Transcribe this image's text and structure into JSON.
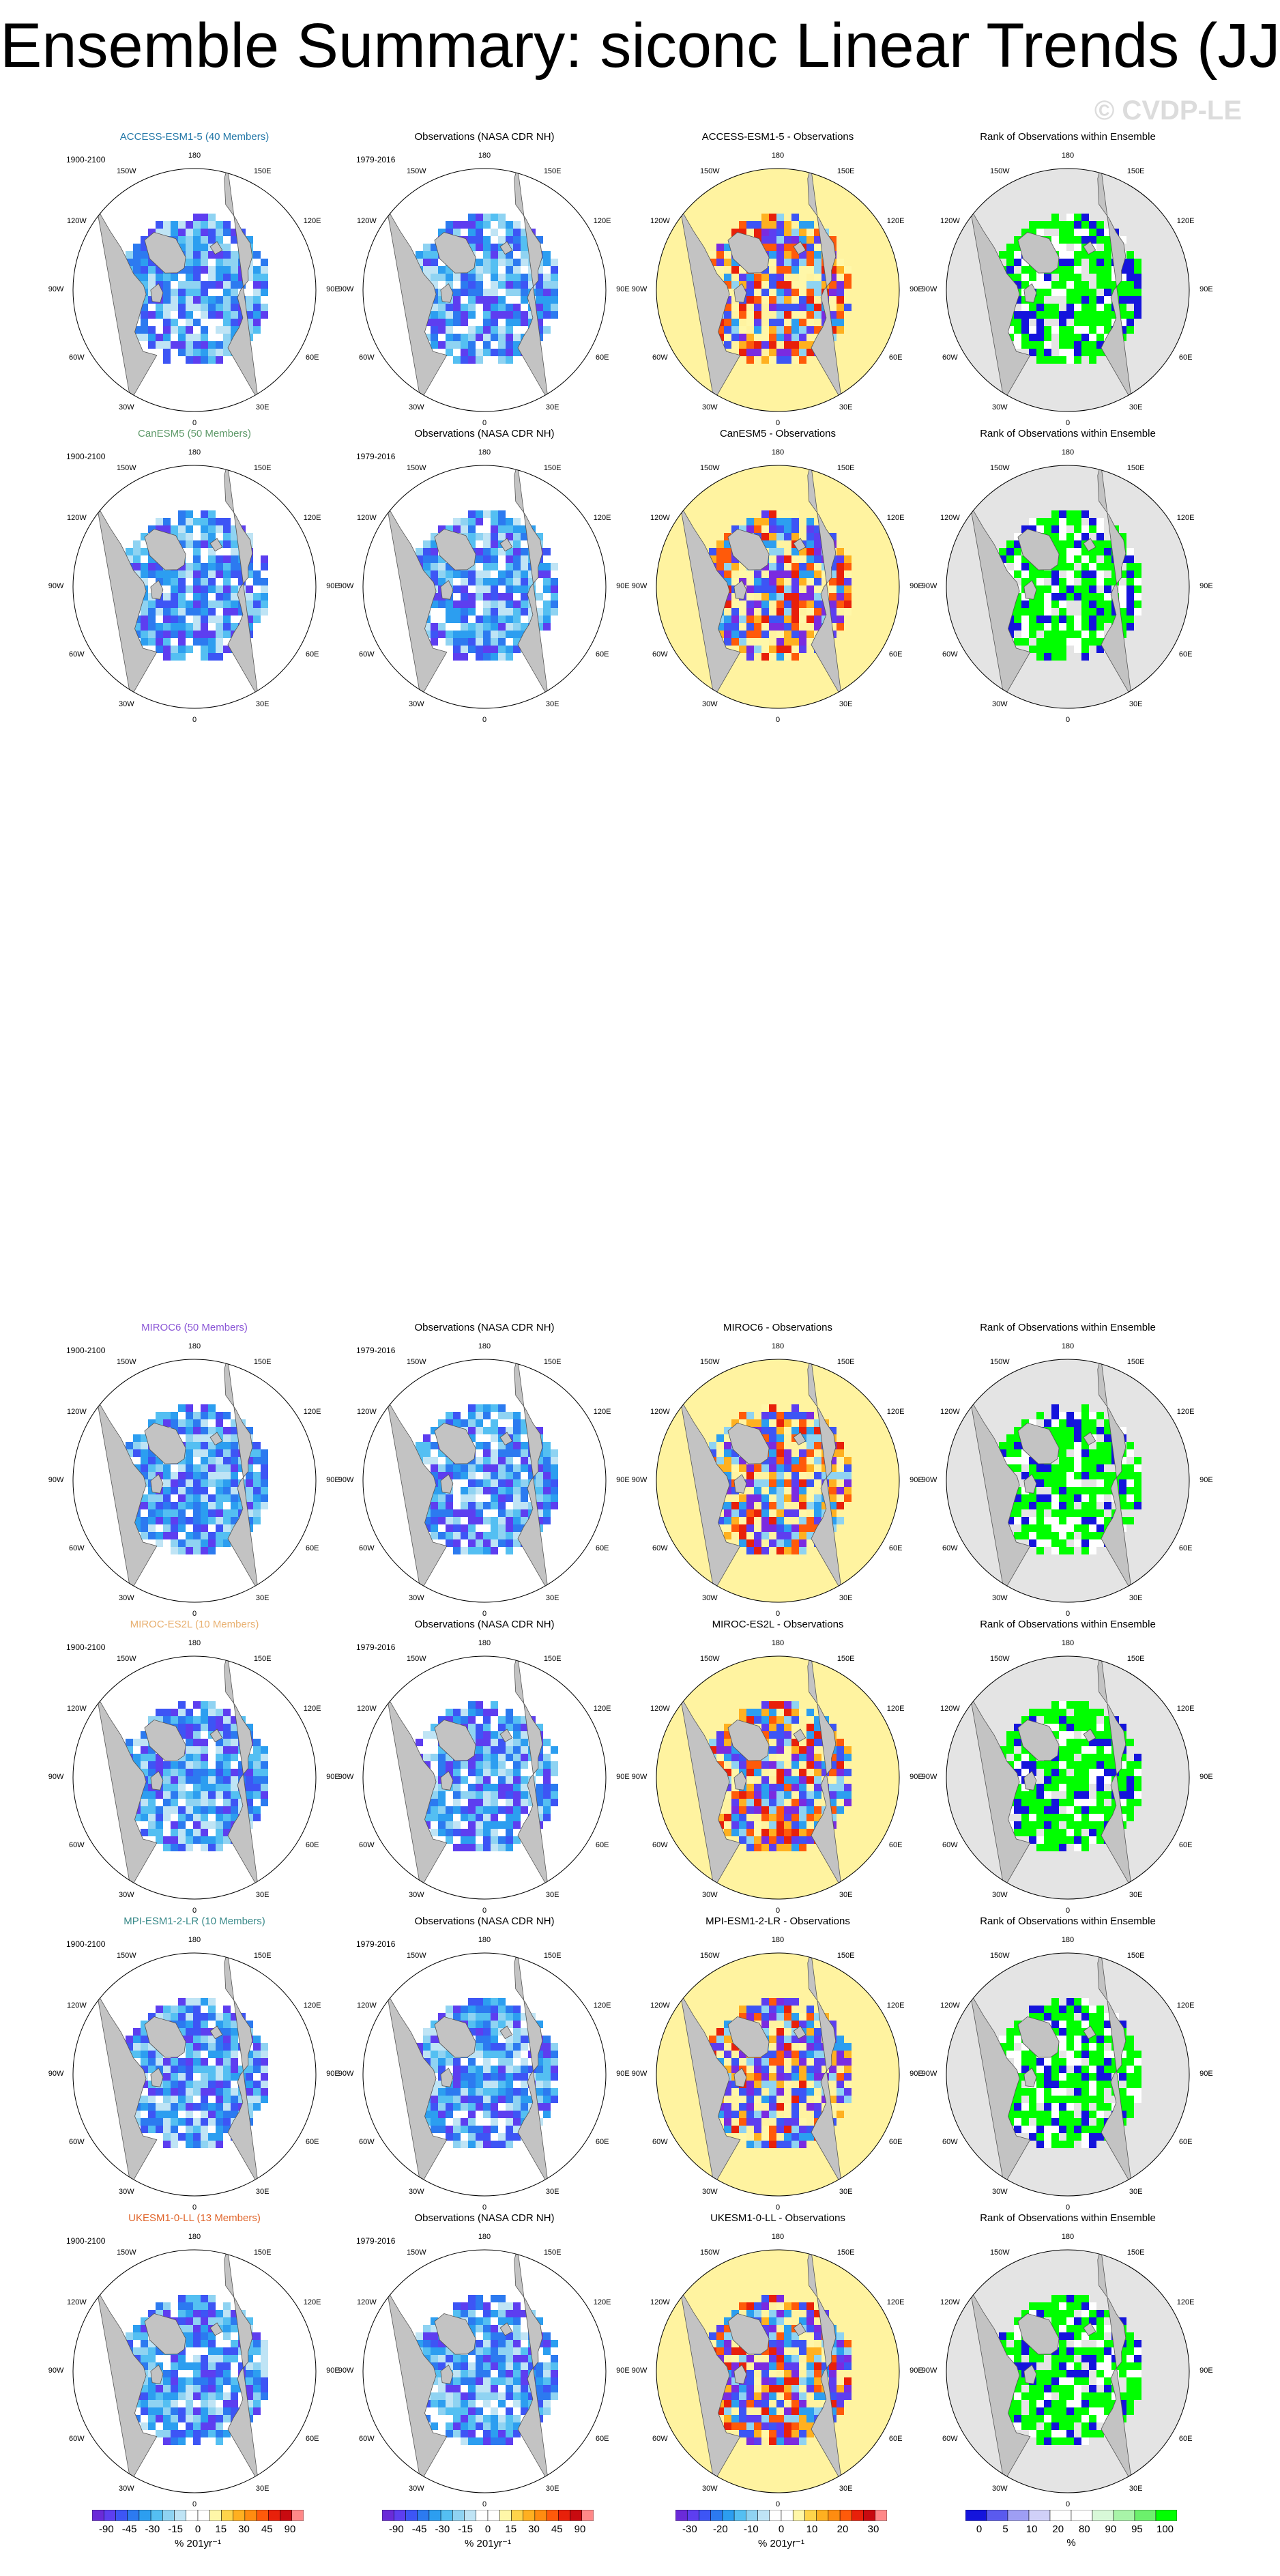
{
  "title": "Ensemble Summary: siconc Linear Trends (JJA)",
  "watermark": "© CVDP-LE",
  "model_period": "1900-2100",
  "obs_period": "1979-2016",
  "obs_title": "Observations (NASA CDR NH)",
  "rank_title": "Rank of Observations within Ensemble",
  "diff_suffix": " - Observations",
  "lon_labels": {
    "top": "180",
    "ul": "150W",
    "ur": "150E",
    "l2": "120W",
    "r2": "120E",
    "left": "90W",
    "right": "90E",
    "ll": "60W",
    "lr": "60E",
    "bl": "30W",
    "br": "30E",
    "bottom": "0"
  },
  "colors": {
    "land": "#c3c3c3",
    "ocean": "#ffffff",
    "rank_ocean": "#e4e4e4",
    "rank_green": "#00ff00"
  },
  "chart_data": {
    "type": "heatmap",
    "rows": [
      {
        "model": "ACCESS-ESM1-5 (40 Members)",
        "diff": "ACCESS-ESM1-5",
        "color": "#2478a8"
      },
      {
        "model": "CanESM5 (50 Members)",
        "diff": "CanESM5",
        "color": "#5f9a6a"
      },
      {
        "model": "MIROC6 (50 Members)",
        "diff": "MIROC6",
        "color": "#8a55d6"
      },
      {
        "model": "MIROC-ES2L (10 Members)",
        "diff": "MIROC-ES2L",
        "color": "#e8b070"
      },
      {
        "model": "MPI-ESM1-2-LR (10 Members)",
        "diff": "MPI-ESM1-2-LR",
        "color": "#3a8a8a"
      },
      {
        "model": "UKESM1-0-LL (13 Members)",
        "diff": "UKESM1-0-LL",
        "color": "#e0642a"
      }
    ],
    "colorbars": [
      {
        "labels": [
          "-90",
          "-45",
          "-30",
          "-15",
          "0",
          "15",
          "30",
          "45",
          "90"
        ],
        "unit": "% 201yr⁻¹",
        "colors": [
          "#6a2ad8",
          "#5d3ef0",
          "#3d55f5",
          "#2c7af0",
          "#2c9ef0",
          "#54bff2",
          "#8fd3f2",
          "#bfe4f5",
          "#ffffff",
          "#ffffff",
          "#fff7a8",
          "#ffd44a",
          "#ffb020",
          "#ff8c10",
          "#ff5a0a",
          "#e8200a",
          "#c80a10",
          "#ff8888"
        ]
      },
      {
        "labels": [
          "-90",
          "-45",
          "-30",
          "-15",
          "0",
          "15",
          "30",
          "45",
          "90"
        ],
        "unit": "% 201yr⁻¹",
        "colors": [
          "#6a2ad8",
          "#5d3ef0",
          "#3d55f5",
          "#2c7af0",
          "#2c9ef0",
          "#54bff2",
          "#8fd3f2",
          "#bfe4f5",
          "#ffffff",
          "#ffffff",
          "#fff7a8",
          "#ffd44a",
          "#ffb020",
          "#ff8c10",
          "#ff5a0a",
          "#e8200a",
          "#c80a10",
          "#ff8888"
        ]
      },
      {
        "labels": [
          "-30",
          "-20",
          "-10",
          "0",
          "10",
          "20",
          "30"
        ],
        "unit": "% 201yr⁻¹",
        "colors": [
          "#6a2ad8",
          "#5d3ef0",
          "#3d55f5",
          "#2c7af0",
          "#2c9ef0",
          "#54bff2",
          "#8fd3f2",
          "#bfe4f5",
          "#ffffff",
          "#ffffff",
          "#fff7a8",
          "#ffd44a",
          "#ffb020",
          "#ff8c10",
          "#ff5a0a",
          "#e8200a",
          "#c80a10",
          "#ff8888"
        ]
      },
      {
        "labels": [
          "0",
          "5",
          "10",
          "20",
          "80",
          "90",
          "95",
          "100"
        ],
        "unit": "%",
        "colors": [
          "#1414dc",
          "#5a5aee",
          "#9e9ef4",
          "#d0d0f8",
          "#ffffff",
          "#ffffff",
          "#d8f8d8",
          "#a8f4a8",
          "#6cf06c",
          "#00ff00"
        ]
      }
    ]
  }
}
